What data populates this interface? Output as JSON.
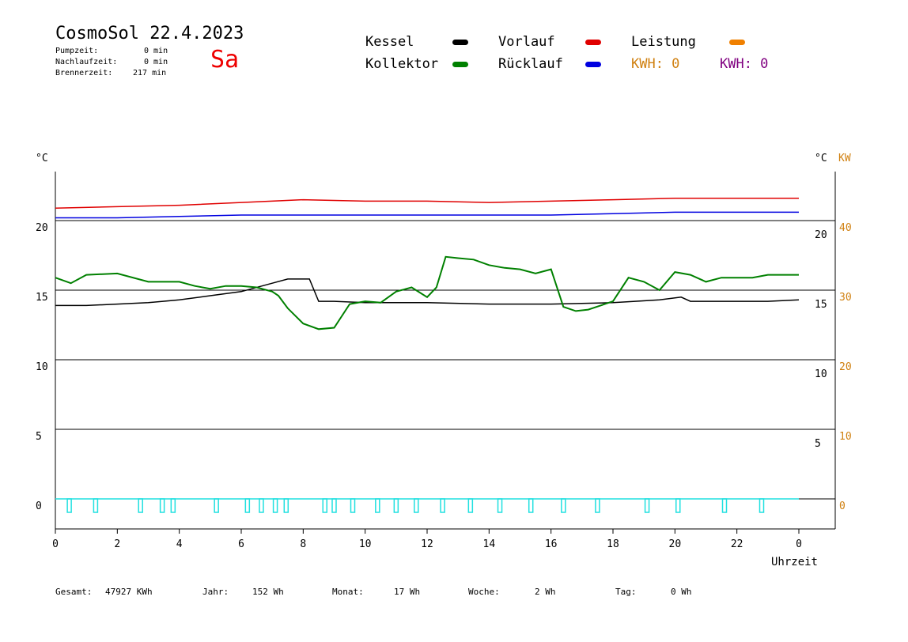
{
  "header": {
    "title": "CosmoSol 22.4.2023",
    "day": "Sa",
    "pump_label": "Pumpzeit:",
    "pump_value": "0 min",
    "nachlauf_label": "Nachlaufzeit:",
    "nachlauf_value": "0 min",
    "brenner_label": "Brennerzeit:",
    "brenner_value": "217 min"
  },
  "legend": {
    "kessel": "Kessel",
    "kollektor": "Kollektor",
    "vorlauf": "Vorlauf",
    "ruecklauf": "Rücklauf",
    "leistung": "Leistung",
    "kwh1": "KWH: 0",
    "kwh2": "KWH: 0"
  },
  "colors": {
    "kessel": "#000000",
    "kollektor": "#008000",
    "vorlauf": "#e00000",
    "ruecklauf": "#0000e0",
    "leistung": "#f08000",
    "kwh1": "#d08010",
    "kwh2": "#800080",
    "pump": "#20e0e0",
    "kw_axis": "#d08010"
  },
  "footer": {
    "gesamt_label": "Gesamt:",
    "gesamt_value": "47927 KWh",
    "jahr_label": "Jahr:",
    "jahr_value": "152 Wh",
    "monat_label": "Monat:",
    "monat_value": "17 Wh",
    "woche_label": "Woche:",
    "woche_value": "2 Wh",
    "tag_label": "Tag:",
    "tag_value": "0 Wh"
  },
  "chart_data": {
    "type": "line",
    "xlabel": "Uhrzeit",
    "ylabel_left": "°C",
    "ylabel_right": "°C",
    "ylabel_kw": "KW",
    "xlim": [
      0,
      24
    ],
    "ylim": [
      -2,
      23.5
    ],
    "x_ticks": [
      "0",
      "2",
      "4",
      "6",
      "8",
      "10",
      "12",
      "14",
      "16",
      "18",
      "20",
      "22",
      "0"
    ],
    "y_ticks_left": [
      "0",
      "5",
      "10",
      "15",
      "20"
    ],
    "y_ticks_right": [
      "5",
      "10",
      "15",
      "20"
    ],
    "y_ticks_kw": [
      "0",
      "10",
      "20",
      "30",
      "40"
    ],
    "series": [
      {
        "name": "Vorlauf",
        "hours": [
          0,
          2,
          4,
          6,
          8,
          10,
          12,
          14,
          16,
          18,
          20,
          22,
          24
        ],
        "values": [
          20.9,
          21.0,
          21.1,
          21.3,
          21.5,
          21.4,
          21.4,
          21.3,
          21.4,
          21.5,
          21.6,
          21.6,
          21.6
        ]
      },
      {
        "name": "Rücklauf",
        "hours": [
          0,
          2,
          4,
          6,
          8,
          10,
          12,
          14,
          16,
          18,
          20,
          22,
          24
        ],
        "values": [
          20.2,
          20.2,
          20.3,
          20.4,
          20.4,
          20.4,
          20.4,
          20.4,
          20.4,
          20.5,
          20.6,
          20.6,
          20.6
        ]
      },
      {
        "name": "Kessel",
        "hours": [
          0,
          1,
          2,
          3,
          4,
          5,
          6,
          7,
          7.5,
          8.2,
          8.5,
          9,
          10,
          12,
          14,
          16,
          18,
          19.5,
          20.2,
          20.5,
          22,
          23,
          24
        ],
        "values": [
          13.9,
          13.9,
          14.0,
          14.1,
          14.3,
          14.6,
          14.9,
          15.5,
          15.8,
          15.8,
          14.2,
          14.2,
          14.1,
          14.1,
          14.0,
          14.0,
          14.1,
          14.3,
          14.5,
          14.2,
          14.2,
          14.2,
          14.3
        ]
      },
      {
        "name": "Kollektor",
        "hours": [
          0,
          0.5,
          1,
          2,
          3,
          3.5,
          4,
          4.5,
          5,
          5.5,
          6,
          6.5,
          7,
          7.2,
          7.5,
          8,
          8.5,
          9,
          9.5,
          10,
          10.5,
          11,
          11.5,
          12,
          12.3,
          12.6,
          13,
          13.5,
          14,
          14.5,
          15,
          15.5,
          16,
          16.4,
          16.8,
          17.2,
          17.6,
          18,
          18.5,
          19,
          19.5,
          20,
          20.5,
          21,
          21.5,
          22,
          22.5,
          23,
          23.5,
          24
        ],
        "values": [
          15.9,
          15.5,
          16.1,
          16.2,
          15.6,
          15.6,
          15.6,
          15.3,
          15.1,
          15.3,
          15.3,
          15.2,
          14.9,
          14.6,
          13.7,
          12.6,
          12.2,
          12.3,
          14.0,
          14.2,
          14.1,
          14.9,
          15.2,
          14.5,
          15.2,
          17.4,
          17.3,
          17.2,
          16.8,
          16.6,
          16.5,
          16.2,
          16.5,
          13.8,
          13.5,
          13.6,
          13.9,
          14.2,
          15.9,
          15.6,
          15.0,
          16.3,
          16.1,
          15.6,
          15.9,
          15.9,
          15.9,
          16.1,
          16.1,
          16.1
        ]
      }
    ],
    "pump_pulses_hours": [
      0.45,
      1.3,
      2.75,
      3.45,
      3.8,
      5.2,
      6.2,
      6.65,
      7.1,
      7.45,
      8.7,
      9.0,
      9.6,
      10.4,
      11.0,
      11.65,
      12.5,
      13.4,
      14.35,
      15.35,
      16.4,
      17.5,
      19.1,
      20.1,
      21.6,
      22.8
    ]
  }
}
